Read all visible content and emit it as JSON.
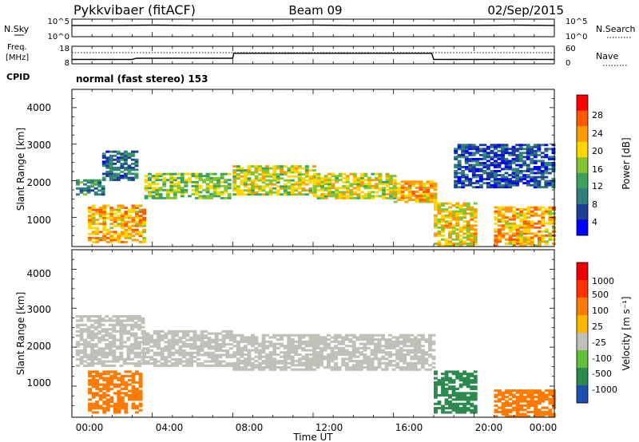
{
  "header": {
    "title": "Pykkvibaer (fitACF)",
    "beam": "Beam 09",
    "date": "02/Sep/2015"
  },
  "noise_panel": {
    "left_label": "N.Sky",
    "left_ticks": [
      "10^5",
      "10^0"
    ],
    "right_label": "N.Search",
    "right_ticks": [
      "10^5",
      "10^0"
    ]
  },
  "freq_panel": {
    "left_label_1": "Freq.",
    "left_label_2": "[MHz]",
    "left_ticks": [
      "18",
      "8"
    ],
    "right_label": "Nave",
    "right_ticks": [
      "60",
      "0"
    ]
  },
  "cpid": {
    "label": "CPID",
    "text": "normal (fast stereo) 153"
  },
  "power_panel": {
    "ylabel": "Slant Range [km]",
    "yticks": [
      "4000",
      "3000",
      "2000",
      "1000"
    ],
    "colorbar_label": "Power [dB]",
    "colorbar_ticks": [
      "28",
      "24",
      "20",
      "16",
      "12",
      "8",
      "4"
    ]
  },
  "velocity_panel": {
    "ylabel": "Slant Range [km]",
    "yticks": [
      "4000",
      "3000",
      "2000",
      "1000"
    ],
    "colorbar_label": "Velocity [m s⁻¹]",
    "colorbar_ticks": [
      "1000",
      "500",
      "100",
      "25",
      "-25",
      "-100",
      "-500",
      "-1000"
    ]
  },
  "xaxis": {
    "label": "Time UT",
    "ticks": [
      "00:00",
      "04:00",
      "08:00",
      "12:00",
      "16:00",
      "20:00",
      "00:00"
    ]
  },
  "colors": {
    "power_scale": [
      "#0000ff",
      "#1e3f96",
      "#2f7f7a",
      "#3ca25d",
      "#84c431",
      "#ffd700",
      "#ff9a00",
      "#ff5a00",
      "#ff0000"
    ],
    "velocity_scale": [
      "#1d4fb0",
      "#2d8a4e",
      "#62bf3a",
      "#c0c0b8",
      "#ffb400",
      "#ff7a00",
      "#ff3300",
      "#ee0000"
    ]
  },
  "chart_data": [
    {
      "type": "line",
      "title": "N.Sky / N.Search",
      "x": [
        0,
        2,
        4,
        6,
        8,
        10,
        12,
        14,
        16,
        18,
        20,
        22,
        24
      ],
      "series": [
        {
          "name": "N.Sky",
          "values": [
            3.2,
            3.2,
            3.3,
            3.2,
            3.2,
            3.2,
            3.3,
            3.2,
            3.2,
            3.2,
            3.2,
            3.3,
            3.2
          ]
        }
      ],
      "ylim": [
        0,
        5
      ]
    },
    {
      "type": "line",
      "title": "Freq. / Nave",
      "x": [
        0,
        3.0,
        3.2,
        8.0,
        8.05,
        17.9,
        18.0,
        24
      ],
      "series": [
        {
          "name": "Freq.",
          "values": [
            10.5,
            10.5,
            11.2,
            11.2,
            14.0,
            14.0,
            10.5,
            10.5
          ]
        }
      ],
      "ylim": [
        8,
        18
      ]
    },
    {
      "type": "heatmap",
      "title": "Power [dB]",
      "x": [
        0,
        2,
        4,
        6,
        8,
        10,
        12,
        14,
        16,
        18,
        20,
        22,
        24
      ],
      "ylim": [
        200,
        4500
      ],
      "xlim": [
        0,
        24
      ],
      "bands": [
        {
          "t": [
            0.2,
            1.5
          ],
          "r": [
            1600,
            2000
          ],
          "power": 10
        },
        {
          "t": [
            1.5,
            3.2
          ],
          "r": [
            2000,
            2800
          ],
          "power": 8
        },
        {
          "t": [
            0.8,
            3.6
          ],
          "r": [
            300,
            1300
          ],
          "power": 22
        },
        {
          "t": [
            3.6,
            7.9
          ],
          "r": [
            1500,
            2200
          ],
          "power": 16
        },
        {
          "t": [
            8.0,
            12.0
          ],
          "r": [
            1600,
            2400
          ],
          "power": 18
        },
        {
          "t": [
            12.0,
            16.0
          ],
          "r": [
            1500,
            2200
          ],
          "power": 18
        },
        {
          "t": [
            16.0,
            18.0
          ],
          "r": [
            1400,
            2000
          ],
          "power": 22
        },
        {
          "t": [
            18.0,
            20.0
          ],
          "r": [
            200,
            1400
          ],
          "power": 20
        },
        {
          "t": [
            21.0,
            24.0
          ],
          "r": [
            200,
            1300
          ],
          "power": 22
        },
        {
          "t": [
            19.0,
            24.0
          ],
          "r": [
            1800,
            3000
          ],
          "power": 6
        }
      ]
    },
    {
      "type": "heatmap",
      "title": "Velocity [m s⁻¹]",
      "x": [
        0,
        2,
        4,
        6,
        8,
        10,
        12,
        14,
        16,
        18,
        20,
        22,
        24
      ],
      "ylim": [
        200,
        4500
      ],
      "xlim": [
        0,
        24
      ],
      "bands": [
        {
          "t": [
            0.2,
            3.5
          ],
          "r": [
            1500,
            2800
          ],
          "velocity": 0
        },
        {
          "t": [
            0.8,
            3.4
          ],
          "r": [
            300,
            1400
          ],
          "velocity": -300
        },
        {
          "t": [
            3.5,
            7.9
          ],
          "r": [
            1500,
            2400
          ],
          "velocity": 0
        },
        {
          "t": [
            8.0,
            18.0
          ],
          "r": [
            1400,
            2300
          ],
          "velocity": 0
        },
        {
          "t": [
            18.0,
            20.0
          ],
          "r": [
            300,
            1400
          ],
          "velocity": 200
        },
        {
          "t": [
            21.0,
            24.0
          ],
          "r": [
            200,
            900
          ],
          "velocity": -300
        }
      ]
    }
  ]
}
